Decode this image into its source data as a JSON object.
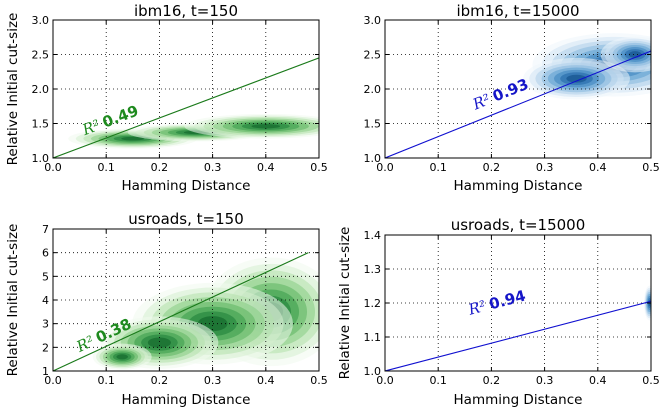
{
  "chart_data": [
    {
      "type": "scatter",
      "title": "ibm16, t=150",
      "xlabel": "Hamming Distance",
      "ylabel": "Relative Initial cut-size",
      "xlim": [
        0.0,
        0.5
      ],
      "ylim": [
        1.0,
        3.0
      ],
      "xticks": [
        "0.0",
        "0.1",
        "0.2",
        "0.3",
        "0.4",
        "0.5"
      ],
      "yticks": [
        "1.0",
        "1.5",
        "2.0",
        "2.5",
        "3.0"
      ],
      "grid": true,
      "palette": "green",
      "fit_line": {
        "x": [
          0.0,
          0.5
        ],
        "y": [
          1.0,
          2.45
        ]
      },
      "r2_label": "R²",
      "r2_value": "0.49",
      "annotation_position": [
        0.06,
        1.33
      ],
      "density_centers": [
        {
          "x": 0.15,
          "y": 1.28,
          "sx": 0.05,
          "sy": 0.06,
          "w": 0.9
        },
        {
          "x": 0.27,
          "y": 1.37,
          "sx": 0.06,
          "sy": 0.06,
          "w": 0.7
        },
        {
          "x": 0.4,
          "y": 1.46,
          "sx": 0.06,
          "sy": 0.07,
          "w": 1.0
        }
      ]
    },
    {
      "type": "scatter",
      "title": "ibm16, t=15000",
      "xlabel": "Hamming Distance",
      "ylabel": "",
      "xlim": [
        0.0,
        0.5
      ],
      "ylim": [
        1.0,
        3.0
      ],
      "xticks": [
        "0.0",
        "0.1",
        "0.2",
        "0.3",
        "0.4",
        "0.5"
      ],
      "yticks": [
        "1.0",
        "1.5",
        "2.0",
        "2.5",
        "3.0"
      ],
      "grid": true,
      "palette": "blue",
      "fit_line": {
        "x": [
          0.0,
          0.5
        ],
        "y": [
          1.0,
          2.55
        ]
      },
      "r2_label": "R²",
      "r2_value": "0.93",
      "annotation_position": [
        0.17,
        1.7
      ],
      "density_centers": [
        {
          "x": 0.43,
          "y": 2.35,
          "sx": 0.06,
          "sy": 0.18,
          "w": 1.0
        },
        {
          "x": 0.36,
          "y": 2.15,
          "sx": 0.05,
          "sy": 0.15,
          "w": 0.6
        },
        {
          "x": 0.47,
          "y": 2.5,
          "sx": 0.03,
          "sy": 0.12,
          "w": 0.7
        }
      ]
    },
    {
      "type": "scatter",
      "title": "usroads, t=150",
      "xlabel": "Hamming Distance",
      "ylabel": "Relative Initial cut-size",
      "xlim": [
        0.0,
        0.5
      ],
      "ylim": [
        1,
        7
      ],
      "xticks": [
        "0.0",
        "0.1",
        "0.2",
        "0.3",
        "0.4",
        "0.5"
      ],
      "yticks": [
        "1",
        "2",
        "3",
        "4",
        "5",
        "6",
        "7"
      ],
      "grid": true,
      "palette": "green",
      "fit_line": {
        "x": [
          0.0,
          0.48
        ],
        "y": [
          1.0,
          6.0
        ]
      },
      "r2_label": "R²",
      "r2_value": "0.38",
      "annotation_position": [
        0.05,
        1.8
      ],
      "density_centers": [
        {
          "x": 0.41,
          "y": 3.5,
          "sx": 0.05,
          "sy": 0.9,
          "w": 1.0
        },
        {
          "x": 0.3,
          "y": 3.0,
          "sx": 0.07,
          "sy": 0.8,
          "w": 0.7
        },
        {
          "x": 0.2,
          "y": 2.2,
          "sx": 0.06,
          "sy": 0.6,
          "w": 0.5
        },
        {
          "x": 0.13,
          "y": 1.6,
          "sx": 0.03,
          "sy": 0.3,
          "w": 0.5
        }
      ]
    },
    {
      "type": "scatter",
      "title": "usroads, t=15000",
      "xlabel": "Hamming Distance",
      "ylabel": "Relative Initial cut-size",
      "xlim": [
        0.0,
        0.5
      ],
      "ylim": [
        1.0,
        1.4
      ],
      "xticks": [
        "0.0",
        "0.1",
        "0.2",
        "0.3",
        "0.4",
        "0.5"
      ],
      "yticks": [
        "1.0",
        "1.1",
        "1.2",
        "1.3",
        "1.4"
      ],
      "grid": true,
      "palette": "blue",
      "fit_line": {
        "x": [
          0.0,
          0.5
        ],
        "y": [
          1.0,
          1.205
        ]
      },
      "r2_label": "R²",
      "r2_value": "0.94",
      "annotation_position": [
        0.16,
        1.165
      ],
      "density_centers": [
        {
          "x": 0.497,
          "y": 1.2,
          "sx": 0.004,
          "sy": 0.02,
          "w": 1.0
        }
      ]
    }
  ],
  "colors": {
    "green_line": "#1a7a1a",
    "green_text": "#1e8a1e",
    "blue_line": "#1010d0",
    "blue_text": "#1515c8"
  }
}
